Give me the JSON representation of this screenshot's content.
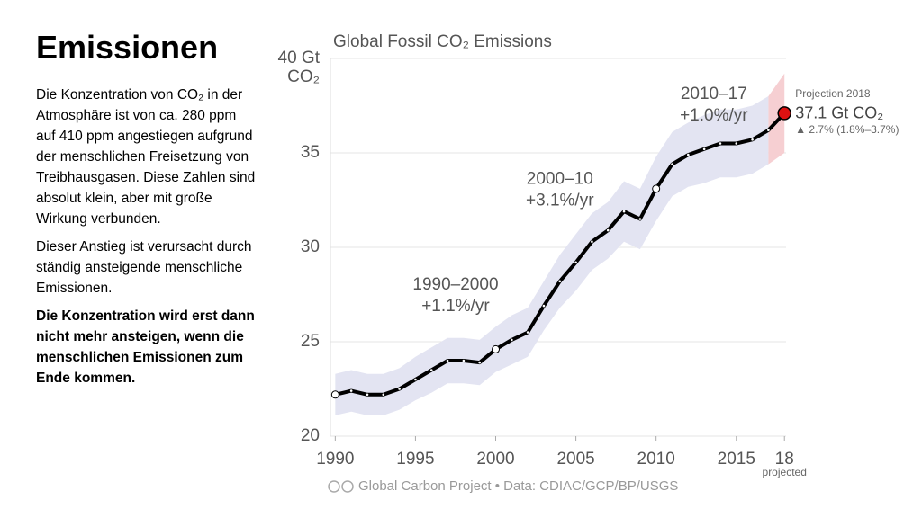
{
  "slide": {
    "title": "Emissionen",
    "paragraphs": [
      "Die Konzentration von CO₂ in der Atmosphäre ist von ca. 280 ppm auf 410 ppm angestiegen aufgrund der menschlichen Freisetzung von Treibhausgasen. Diese Zahlen sind absolut klein, aber mit große Wirkung verbunden.",
      "Dieser Anstieg ist verursacht durch ständig ansteigende menschliche Emissionen.",
      "Die Konzentration wird erst dann nicht mehr ansteigen, wenn die menschlichen Emissionen  zum Ende kommen."
    ]
  },
  "chart_data": {
    "type": "line",
    "title": "Global Fossil CO₂ Emissions",
    "source": "Global Carbon Project  •  Data: CDIAC/GCP/BP/USGS",
    "x": [
      1990,
      1991,
      1992,
      1993,
      1994,
      1995,
      1996,
      1997,
      1998,
      1999,
      2000,
      2001,
      2002,
      2003,
      2004,
      2005,
      2006,
      2007,
      2008,
      2009,
      2010,
      2011,
      2012,
      2013,
      2014,
      2015,
      2016,
      2017,
      2018
    ],
    "series": [
      {
        "name": "Global Fossil CO₂ Emissions",
        "color": "#000000",
        "values": [
          22.2,
          22.4,
          22.2,
          22.2,
          22.5,
          23.0,
          23.5,
          24.0,
          24.0,
          23.9,
          24.6,
          25.1,
          25.5,
          26.9,
          28.2,
          29.2,
          30.3,
          30.9,
          31.9,
          31.5,
          33.1,
          34.4,
          34.9,
          35.2,
          35.5,
          35.5,
          35.7,
          36.2,
          37.1
        ],
        "upper": [
          23.3,
          23.5,
          23.3,
          23.3,
          23.6,
          24.2,
          24.7,
          25.2,
          25.2,
          25.1,
          25.8,
          26.4,
          26.8,
          28.2,
          29.6,
          30.7,
          31.8,
          32.4,
          33.5,
          33.1,
          34.8,
          36.1,
          36.6,
          37.0,
          37.3,
          37.3,
          37.5,
          38.0,
          39.2
        ],
        "lower": [
          21.1,
          21.3,
          21.1,
          21.1,
          21.4,
          21.9,
          22.3,
          22.8,
          22.8,
          22.7,
          23.4,
          23.8,
          24.2,
          25.6,
          26.8,
          27.7,
          28.8,
          29.4,
          30.3,
          29.9,
          31.4,
          32.7,
          33.2,
          33.4,
          33.7,
          33.7,
          33.9,
          34.4,
          35.0
        ],
        "band_color": "#e3e4f2",
        "projection_color": "#f6cfd2",
        "projection_marker_color": "#dd1111"
      }
    ],
    "xlim": [
      1989.7,
      2018.1
    ],
    "xticks": [
      1990,
      1995,
      2000,
      2005,
      2010,
      2015,
      {
        "value": 2018,
        "label": "18"
      }
    ],
    "x_note": "projected",
    "ylim": [
      20,
      40
    ],
    "yticks": [
      20,
      25,
      30,
      35,
      {
        "value": 40,
        "label": "40 Gt CO₂"
      }
    ],
    "grid": true,
    "annotations": [
      {
        "period": "1990–2000",
        "rate": "+1.1%/yr",
        "x": 1997.5,
        "y": 28
      },
      {
        "period": "2000–10",
        "rate": "+3.1%/yr",
        "x": 2004.0,
        "y": 33.6
      },
      {
        "period": "2010–17",
        "rate": "+1.0%/yr",
        "x": 2013.6,
        "y": 38.1
      }
    ],
    "projection": {
      "label": "Projection 2018",
      "value_label": "37.1 Gt CO₂",
      "change": "▲ 2.7% (1.8%–3.7%)"
    }
  }
}
